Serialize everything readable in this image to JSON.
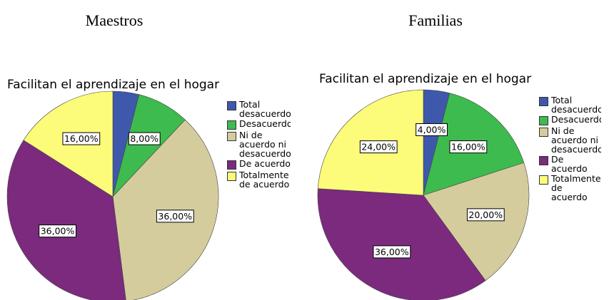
{
  "chart_data": [
    {
      "type": "pie",
      "heading": "Maestros",
      "title": "Facilitan el aprendizaje en el hogar",
      "categories": [
        "Total desacuerdo",
        "Desacuerdo",
        "Ni de acuerdo ni desacuerdo",
        "De acuerdo",
        "Totalmente de acuerdo"
      ],
      "values": [
        4,
        8,
        36,
        36,
        16
      ],
      "value_labels": [
        null,
        "8,00%",
        "36,00%",
        "36,00%",
        "16,00%"
      ],
      "colors": [
        "#3e58ac",
        "#3dbb4e",
        "#d5cc9e",
        "#7b2a7e",
        "#fcfc7a"
      ]
    },
    {
      "type": "pie",
      "heading": "Familias",
      "title": "Facilitan el aprendizaje en el hogar",
      "categories": [
        "Total desacuerdo",
        "Desacuerdo",
        "Ni de acuerdo ni desacuerdo",
        "De acuerdo",
        "Totalmente de acuerdo"
      ],
      "values": [
        4,
        16,
        20,
        36,
        24
      ],
      "value_labels": [
        "4,00%",
        "16,00%",
        "20,00%",
        "36,00%",
        "24,00%"
      ],
      "colors": [
        "#3e58ac",
        "#3dbb4e",
        "#d5cc9e",
        "#7b2a7e",
        "#fcfc7a"
      ]
    }
  ]
}
